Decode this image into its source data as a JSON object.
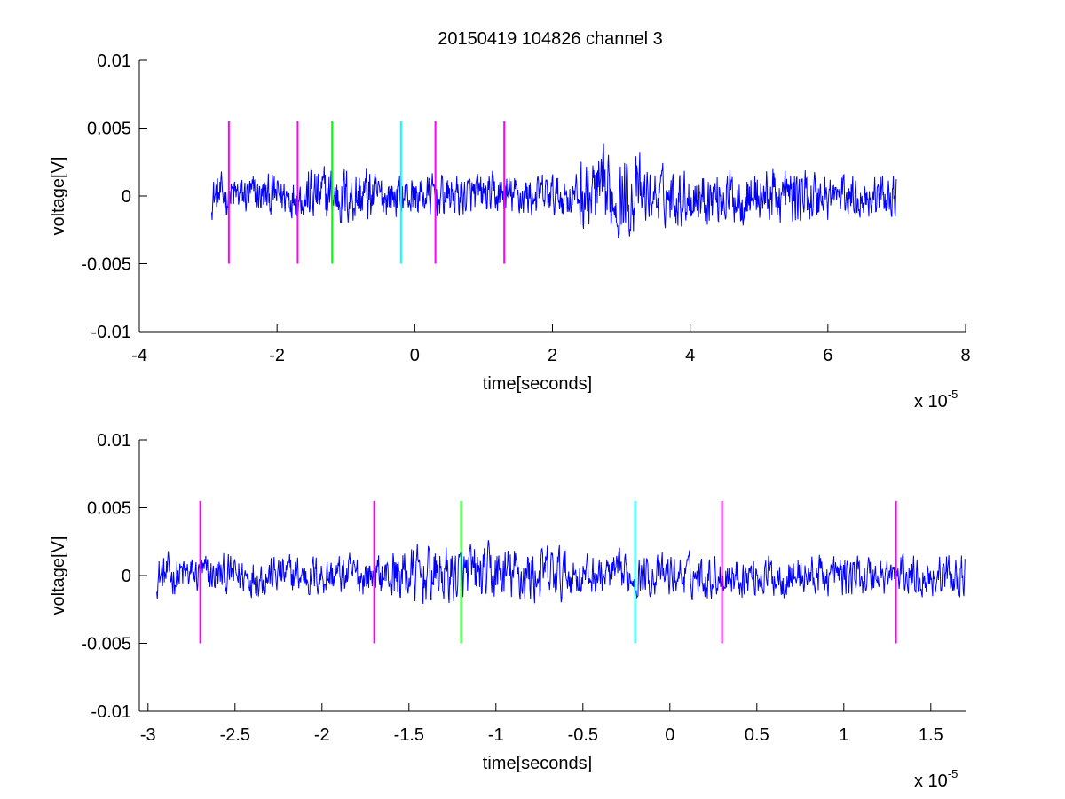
{
  "figure": {
    "title": "20150419 104826 channel 3"
  },
  "chart_data": [
    {
      "type": "line",
      "title": "20150419 104826 channel 3",
      "xlabel": "time[seconds]",
      "ylabel": "voltage[V]",
      "x_multiplier_text": "x 10",
      "x_multiplier_exp": "-5",
      "xlim": [
        -4,
        8
      ],
      "ylim": [
        -0.01,
        0.01
      ],
      "xticks": [
        -4,
        -2,
        0,
        2,
        4,
        6,
        8
      ],
      "xtick_labels": [
        "-4",
        "-2",
        "0",
        "2",
        "4",
        "6",
        "8"
      ],
      "yticks": [
        0.01,
        0.005,
        0,
        -0.005,
        -0.01
      ],
      "ytick_labels": [
        "0.01",
        "0.005",
        "0",
        "-0.005",
        "-0.01"
      ],
      "grid": false,
      "signal": {
        "color": "#0000ff",
        "x_start": -2.95,
        "x_end": 7.0,
        "typical_amplitude": 0.0015
      },
      "markers": [
        {
          "x": -2.7,
          "color": "#ff00ff",
          "y_range": [
            -0.005,
            0.0055
          ]
        },
        {
          "x": -1.7,
          "color": "#ff00ff",
          "y_range": [
            -0.005,
            0.0055
          ]
        },
        {
          "x": -1.2,
          "color": "#00ff00",
          "y_range": [
            -0.005,
            0.0055
          ]
        },
        {
          "x": -0.2,
          "color": "#00ffff",
          "y_range": [
            -0.005,
            0.0055
          ]
        },
        {
          "x": 0.3,
          "color": "#ff00ff",
          "y_range": [
            -0.005,
            0.0055
          ]
        },
        {
          "x": 1.3,
          "color": "#ff00ff",
          "y_range": [
            -0.005,
            0.0055
          ]
        }
      ]
    },
    {
      "type": "line",
      "title": "",
      "xlabel": "time[seconds]",
      "ylabel": "voltage[V]",
      "x_multiplier_text": "x 10",
      "x_multiplier_exp": "-5",
      "xlim": [
        -3.05,
        1.7
      ],
      "ylim": [
        -0.01,
        0.01
      ],
      "xticks": [
        -3,
        -2.5,
        -2,
        -1.5,
        -1,
        -0.5,
        0,
        0.5,
        1,
        1.5
      ],
      "xtick_labels": [
        "-3",
        "-2.5",
        "-2",
        "-1.5",
        "-1",
        "-0.5",
        "0",
        "0.5",
        "1",
        "1.5"
      ],
      "yticks": [
        0.01,
        0.005,
        0,
        -0.005,
        -0.01
      ],
      "ytick_labels": [
        "0.01",
        "0.005",
        "0",
        "-0.005",
        "-0.01"
      ],
      "grid": false,
      "signal": {
        "color": "#0000ff",
        "x_start": -2.95,
        "x_end": 1.7,
        "typical_amplitude": 0.0015
      },
      "markers": [
        {
          "x": -2.7,
          "color": "#ff00ff",
          "y_range": [
            -0.005,
            0.0055
          ]
        },
        {
          "x": -1.7,
          "color": "#ff00ff",
          "y_range": [
            -0.005,
            0.0055
          ]
        },
        {
          "x": -1.2,
          "color": "#00ff00",
          "y_range": [
            -0.005,
            0.0055
          ]
        },
        {
          "x": -0.2,
          "color": "#00ffff",
          "y_range": [
            -0.005,
            0.0055
          ]
        },
        {
          "x": 0.3,
          "color": "#ff00ff",
          "y_range": [
            -0.005,
            0.0055
          ]
        },
        {
          "x": 1.3,
          "color": "#ff00ff",
          "y_range": [
            -0.005,
            0.0055
          ]
        }
      ]
    }
  ]
}
